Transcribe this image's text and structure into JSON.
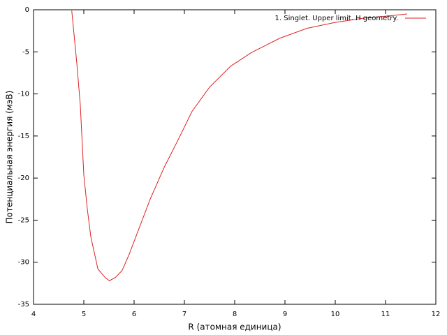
{
  "chart_data": {
    "type": "line",
    "xlabel": "R (атомная единица)",
    "ylabel": "Потенциальная энергия (мэВ)",
    "x": [
      4.76,
      4.86,
      4.93,
      5.0,
      5.07,
      5.14,
      5.28,
      5.42,
      5.51,
      5.63,
      5.76,
      5.9,
      6.11,
      6.32,
      6.6,
      6.88,
      7.15,
      7.5,
      7.92,
      8.33,
      8.89,
      9.44,
      10.0,
      10.56,
      11.11,
      11.43
    ],
    "series": [
      {
        "name": "1. Singlet. Upper limit. H geometry.",
        "color": "#dd2222",
        "values": [
          -0.1,
          -6.3,
          -11.3,
          -19.6,
          -23.7,
          -27,
          -30.8,
          -31.8,
          -32.2,
          -31.8,
          -31,
          -29.1,
          -25.8,
          -22.5,
          -18.7,
          -15.4,
          -12.1,
          -9.2,
          -6.7,
          -5.1,
          -3.4,
          -2.2,
          -1.5,
          -1.0,
          -0.7,
          -0.5
        ]
      }
    ],
    "xlim": [
      4,
      12
    ],
    "xticks": [
      4,
      5,
      6,
      7,
      8,
      9,
      10,
      11,
      12
    ],
    "ylim": [
      -35,
      0
    ],
    "yticks": [
      0,
      -5,
      -10,
      -15,
      -20,
      -25,
      -30,
      -35
    ],
    "legend": "top-right"
  }
}
